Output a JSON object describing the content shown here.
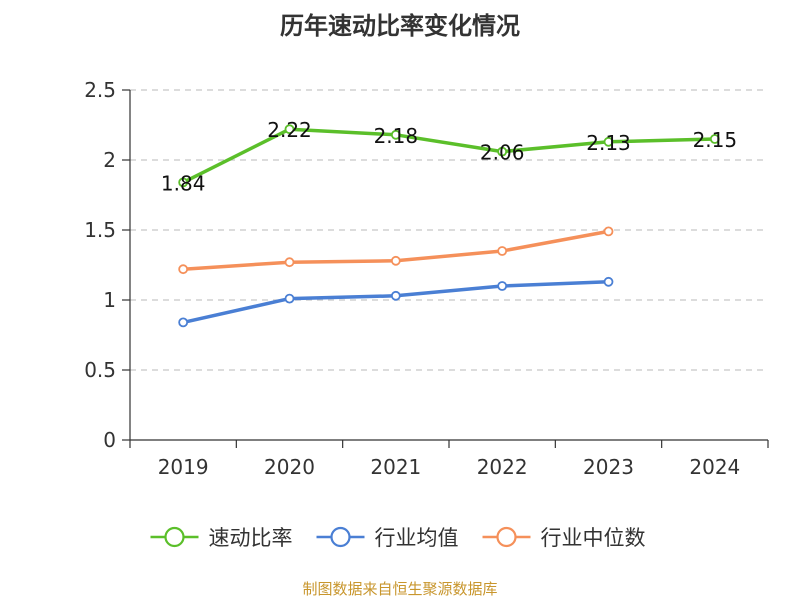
{
  "chart_data": {
    "type": "line",
    "title": "历年速动比率变化情况",
    "categories": [
      "2019",
      "2020",
      "2021",
      "2022",
      "2023",
      "2024"
    ],
    "ylim": [
      0,
      2.5
    ],
    "yticks": [
      "0",
      "0.5",
      "1",
      "1.5",
      "2",
      "2.5"
    ],
    "grid": true,
    "legend_position": "bottom",
    "series": [
      {
        "name": "速动比率",
        "color": "#5bbf2a",
        "values": [
          1.84,
          2.22,
          2.18,
          2.06,
          2.13,
          2.15
        ],
        "labels": [
          "1.84",
          "2.22",
          "2.18",
          "2.06",
          "2.13",
          "2.15"
        ]
      },
      {
        "name": "行业均值",
        "color": "#4a7fd4",
        "values": [
          0.84,
          1.01,
          1.03,
          1.1,
          1.13,
          null
        ]
      },
      {
        "name": "行业中位数",
        "color": "#f5905a",
        "values": [
          1.22,
          1.27,
          1.28,
          1.35,
          1.49,
          null
        ]
      }
    ]
  },
  "source": "制图数据来自恒生聚源数据库"
}
